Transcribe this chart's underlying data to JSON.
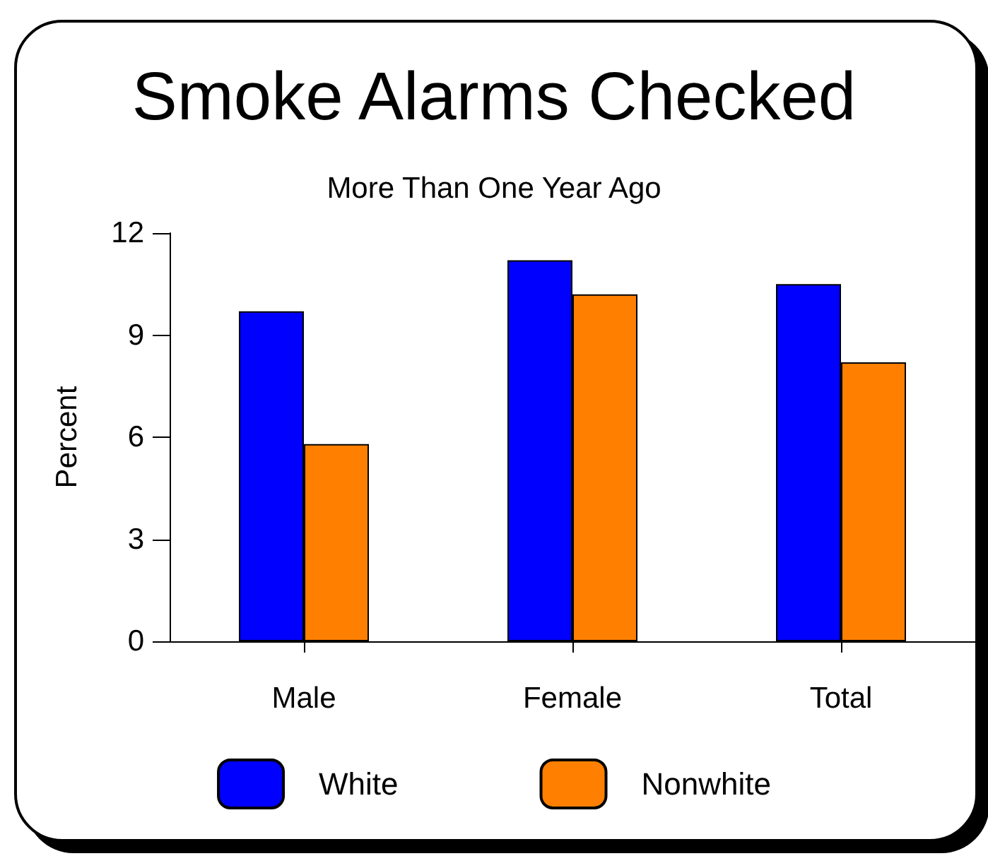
{
  "chart_data": {
    "type": "bar",
    "title": "Smoke Alarms Checked",
    "subtitle": "More Than One Year Ago",
    "ylabel": "Percent",
    "categories": [
      "Male",
      "Female",
      "Total"
    ],
    "series": [
      {
        "name": "White",
        "color": "#0000ff",
        "values": [
          9.7,
          11.2,
          10.5
        ]
      },
      {
        "name": "Nonwhite",
        "color": "#ff8000",
        "values": [
          5.8,
          10.2,
          8.2
        ]
      }
    ],
    "ylim": [
      0,
      12
    ],
    "yticks": [
      0,
      3,
      6,
      9,
      12
    ],
    "grid": false,
    "legend": "bottom"
  }
}
